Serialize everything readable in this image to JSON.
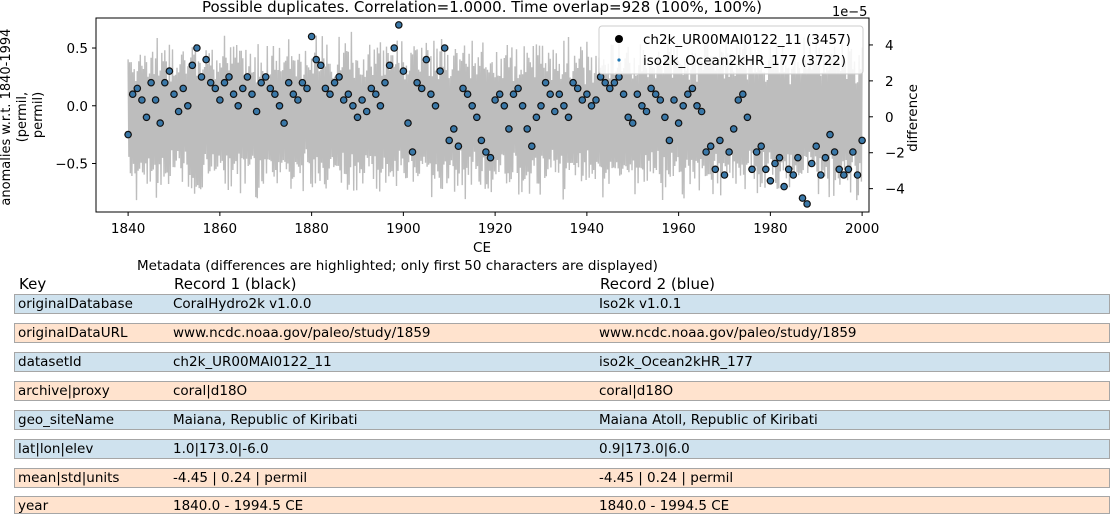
{
  "chart_data": {
    "type": "line",
    "title": "Possible duplicates. Correlation=1.0000. Time overlap=928 (100%, 100%)",
    "xlabel": "CE",
    "ylabel": "anomalies w.r.t. 1840-1994 (permil, permil)",
    "ylabel_lines": [
      "anomalies w.r.t. 1840-1994",
      "(permil,",
      "permil)"
    ],
    "y2label": "difference",
    "y2_offset_text": "1e−5",
    "xlim": [
      1833,
      2001.5
    ],
    "ylim": [
      -0.92,
      0.76
    ],
    "y2lim": [
      -5.3,
      5.5
    ],
    "x_ticks": [
      1840,
      1860,
      1880,
      1900,
      1920,
      1940,
      1960,
      1980,
      2000
    ],
    "x_tick_labels": [
      "1840",
      "1860",
      "1880",
      "1900",
      "1920",
      "1940",
      "1960",
      "1980",
      "2000"
    ],
    "y_ticks": [
      0.5,
      0.0,
      -0.5
    ],
    "y_tick_labels": [
      "0.5",
      "0.0",
      "−0.5"
    ],
    "y2_ticks": [
      4,
      2,
      0,
      -2,
      -4
    ],
    "y2_tick_labels": [
      "4",
      "2",
      "0",
      "−2",
      "−4"
    ],
    "legend_position": "top-right",
    "legend": [
      "ch2k_UR00MAI0122_11 (3457)",
      "iso2k_Ocean2kHR_177 (3722)"
    ],
    "series": [
      {
        "name": "ch2k_UR00MAI0122_11 (3457)",
        "style": "black dots",
        "color": "#000000"
      },
      {
        "name": "iso2k_Ocean2kHR_177 (3722)",
        "style": "blue dots",
        "color": "#1f77b4"
      },
      {
        "name": "difference",
        "style": "grey line",
        "color": "#bbbbbb",
        "axis": "right"
      }
    ],
    "x_start": 1840.0,
    "x_step": 1.0,
    "y": [
      -0.25,
      0.1,
      0.15,
      0.05,
      -0.1,
      0.2,
      0.05,
      -0.15,
      0.2,
      0.3,
      0.1,
      -0.05,
      0.15,
      0.0,
      0.35,
      0.5,
      0.25,
      0.4,
      0.2,
      0.15,
      0.05,
      0.2,
      0.25,
      0.1,
      0.0,
      0.15,
      0.25,
      0.1,
      -0.05,
      0.2,
      0.25,
      0.15,
      0.1,
      0.0,
      -0.15,
      0.2,
      0.1,
      0.05,
      0.2,
      0.15,
      0.6,
      0.4,
      0.35,
      0.15,
      0.1,
      0.2,
      0.25,
      0.05,
      0.1,
      0.0,
      -0.1,
      0.05,
      -0.05,
      0.15,
      0.1,
      0.0,
      0.2,
      0.35,
      0.5,
      0.7,
      0.3,
      -0.15,
      -0.4,
      0.2,
      0.15,
      0.4,
      0.1,
      0.0,
      0.3,
      0.5,
      -0.3,
      -0.2,
      -0.35,
      0.15,
      0.1,
      0.0,
      -0.1,
      -0.3,
      -0.4,
      -0.45,
      0.05,
      0.1,
      0.0,
      -0.2,
      0.1,
      0.15,
      0.0,
      -0.2,
      -0.35,
      -0.1,
      0.0,
      0.2,
      0.1,
      -0.05,
      0.1,
      0.0,
      -0.1,
      0.2,
      0.15,
      0.05,
      0.1,
      0.0,
      0.05,
      0.25,
      0.2,
      0.15,
      0.2,
      0.25,
      0.1,
      -0.1,
      -0.15,
      0.1,
      0.0,
      -0.05,
      0.15,
      0.1,
      0.05,
      -0.1,
      -0.3,
      0.05,
      -0.15,
      0.0,
      0.1,
      0.15,
      0.0,
      -0.05,
      -0.4,
      -0.35,
      -0.55,
      -0.3,
      -0.6,
      -0.4,
      -0.2,
      0.05,
      0.1,
      -0.1,
      -0.55,
      -0.4,
      -0.35,
      -0.55,
      -0.65,
      -0.5,
      -0.45,
      -0.7,
      -0.55,
      -0.6,
      -0.45,
      -0.8,
      -0.85,
      -0.5,
      -0.35,
      -0.6,
      -0.45,
      -0.25,
      -0.4,
      -0.55,
      -0.6,
      -0.55,
      -0.4,
      -0.6,
      -0.3
    ]
  },
  "metadata": {
    "caption": "Metadata (differences are highlighted; only first 50 characters are displayed)",
    "header": {
      "key": "Key",
      "record1": "Record 1 (black)",
      "record2": "Record 2 (blue)"
    },
    "row_colors": {
      "same": "#ffe3ce",
      "different": "#cfe2ee"
    },
    "rows": [
      {
        "key": "originalDatabase",
        "record1": "CoralHydro2k v1.0.0",
        "record2": "Iso2k v1.0.1",
        "different": true
      },
      {
        "key": "originalDataURL",
        "record1": "www.ncdc.noaa.gov/paleo/study/1859",
        "record2": "www.ncdc.noaa.gov/paleo/study/1859",
        "different": false
      },
      {
        "key": "datasetId",
        "record1": "ch2k_UR00MAI0122_11",
        "record2": "iso2k_Ocean2kHR_177",
        "different": true
      },
      {
        "key": "archive|proxy",
        "record1": "coral|d18O",
        "record2": "coral|d18O",
        "different": false
      },
      {
        "key": "geo_siteName",
        "record1": "Maiana, Republic of Kiribati",
        "record2": "Maiana Atoll, Republic of Kiribati",
        "different": true
      },
      {
        "key": "lat|lon|elev",
        "record1": "1.0|173.0|-6.0",
        "record2": "0.9|173.0|6.0",
        "different": true
      },
      {
        "key": "mean|std|units",
        "record1": "-4.45 | 0.24 | permil",
        "record2": "-4.45 | 0.24 | permil",
        "different": false
      },
      {
        "key": "year",
        "record1": "1840.0 - 1994.5 CE",
        "record2": "1840.0 - 1994.5 CE",
        "different": false
      }
    ]
  }
}
